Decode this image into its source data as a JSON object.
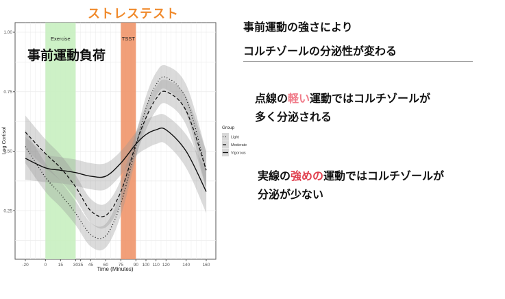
{
  "overlay": {
    "stress_test_title": "ストレステスト",
    "preload_label": "事前運動負荷",
    "heading_line1": "事前運動の強さにより",
    "heading_line2": "コルチゾールの分泌性が変わる",
    "para1": {
      "pre": "点線の",
      "highlight": "軽い",
      "post": "運動ではコルチゾールが",
      "line2": "多く分泌される"
    },
    "para2": {
      "pre": "実線の",
      "highlight": "強めの",
      "post": "運動ではコルチゾールが",
      "line2": "分泌が少ない"
    }
  },
  "colors": {
    "title_orange": "#f08a2c",
    "exercise_band": "#c8f0c0",
    "tsst_band": "#f0956a",
    "highlight_light": "#f07a88",
    "highlight_strong": "#e0404e"
  },
  "chart_data": {
    "type": "line",
    "xlabel": "Time (Minutes)",
    "ylabel": "Log Cortisol",
    "xlim": [
      -25,
      165
    ],
    "ylim": [
      0.05,
      1.04
    ],
    "x_ticks": [
      -20,
      0,
      15,
      30,
      35,
      45,
      60,
      75,
      90,
      100,
      110,
      120,
      140,
      160
    ],
    "y_ticks": [
      0.25,
      0.5,
      0.75,
      1.0
    ],
    "y_tick_labels": [
      "0.25",
      "0.50",
      "0.75",
      "1.00"
    ],
    "grid": true,
    "annotations": [
      {
        "label": "Exercise",
        "x_start": 0,
        "x_end": 30
      },
      {
        "label": "TSST",
        "x_start": 75,
        "x_end": 90
      }
    ],
    "legend": {
      "title": "Group",
      "placement": "right"
    },
    "x": [
      -20,
      0,
      15,
      30,
      45,
      60,
      75,
      90,
      100,
      110,
      120,
      140,
      160
    ],
    "series": [
      {
        "name": "Light",
        "style": "dotted",
        "values": [
          0.52,
          0.39,
          0.32,
          0.24,
          0.15,
          0.145,
          0.28,
          0.52,
          0.68,
          0.78,
          0.81,
          0.72,
          0.42
        ],
        "ci": [
          0.07,
          0.06,
          0.055,
          0.05,
          0.05,
          0.05,
          0.05,
          0.05,
          0.05,
          0.05,
          0.05,
          0.06,
          0.08
        ]
      },
      {
        "name": "Moderate",
        "style": "dashed",
        "values": [
          0.58,
          0.49,
          0.43,
          0.35,
          0.25,
          0.23,
          0.33,
          0.53,
          0.64,
          0.72,
          0.75,
          0.67,
          0.42
        ],
        "ci": [
          0.07,
          0.06,
          0.055,
          0.05,
          0.05,
          0.05,
          0.05,
          0.05,
          0.05,
          0.05,
          0.05,
          0.06,
          0.08
        ]
      },
      {
        "name": "Vigorous",
        "style": "solid",
        "values": [
          0.47,
          0.43,
          0.42,
          0.41,
          0.395,
          0.395,
          0.45,
          0.53,
          0.57,
          0.59,
          0.59,
          0.5,
          0.33
        ],
        "ci": [
          0.09,
          0.06,
          0.055,
          0.055,
          0.055,
          0.055,
          0.05,
          0.05,
          0.06,
          0.06,
          0.06,
          0.07,
          0.09
        ]
      }
    ]
  }
}
